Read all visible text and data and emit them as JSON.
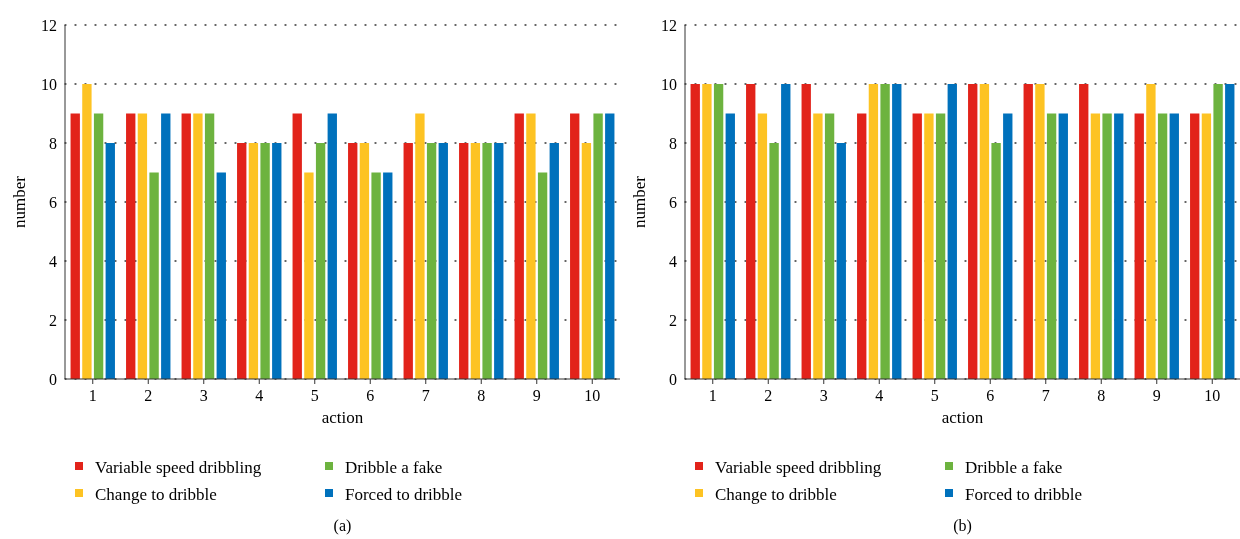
{
  "chart_data": [
    {
      "type": "bar",
      "xlabel": "action",
      "ylabel": "number",
      "categories": [
        "1",
        "2",
        "3",
        "4",
        "5",
        "6",
        "7",
        "8",
        "9",
        "10"
      ],
      "ylim": [
        0,
        12
      ],
      "yticks": [
        0,
        2,
        4,
        6,
        8,
        10,
        12
      ],
      "grid": "y",
      "legend": "bottom",
      "annotations": [
        "(a)"
      ],
      "series": [
        {
          "name": "Variable speed dribbling",
          "color": "#e2231a",
          "values": [
            9,
            9,
            9,
            8,
            9,
            8,
            8,
            8,
            9,
            9
          ]
        },
        {
          "name": "Change to dribble",
          "color": "#fdc323",
          "values": [
            10,
            9,
            9,
            8,
            7,
            8,
            9,
            8,
            9,
            8
          ]
        },
        {
          "name": "Dribble a fake",
          "color": "#6db33f",
          "values": [
            9,
            7,
            9,
            8,
            8,
            7,
            8,
            8,
            7,
            9
          ]
        },
        {
          "name": "Forced to dribble",
          "color": "#0071bc",
          "values": [
            8,
            9,
            7,
            8,
            9,
            7,
            8,
            8,
            8,
            9
          ]
        }
      ]
    },
    {
      "type": "bar",
      "xlabel": "action",
      "ylabel": "number",
      "categories": [
        "1",
        "2",
        "3",
        "4",
        "5",
        "6",
        "7",
        "8",
        "9",
        "10"
      ],
      "ylim": [
        0,
        12
      ],
      "yticks": [
        0,
        2,
        4,
        6,
        8,
        10,
        12
      ],
      "grid": "y",
      "legend": "bottom",
      "annotations": [
        "(b)"
      ],
      "series": [
        {
          "name": "Variable speed dribbling",
          "color": "#e2231a",
          "values": [
            10,
            10,
            10,
            9,
            9,
            10,
            10,
            10,
            9,
            9
          ]
        },
        {
          "name": "Change to dribble",
          "color": "#fdc323",
          "values": [
            10,
            9,
            9,
            10,
            9,
            10,
            10,
            9,
            10,
            9
          ]
        },
        {
          "name": "Dribble a fake",
          "color": "#6db33f",
          "values": [
            10,
            8,
            9,
            10,
            9,
            8,
            9,
            9,
            9,
            10
          ]
        },
        {
          "name": "Forced to dribble",
          "color": "#0071bc",
          "values": [
            9,
            10,
            8,
            10,
            10,
            9,
            9,
            9,
            9,
            10
          ]
        }
      ]
    }
  ]
}
